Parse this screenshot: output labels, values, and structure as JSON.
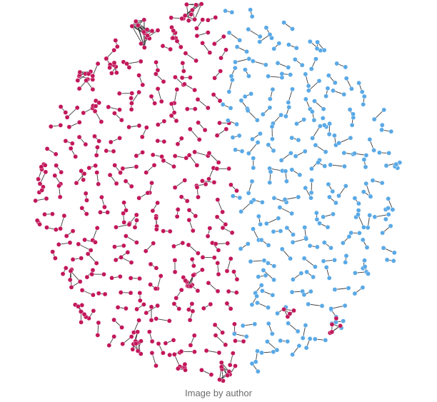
{
  "figure": {
    "type": "network-graph",
    "node_groups": [
      {
        "label": "",
        "color": "#c2185b"
      },
      {
        "label": "",
        "color": "#5aa9e6"
      }
    ],
    "edge_color": "#3a3a3a",
    "layout_shape": "circular cloud of small disconnected components",
    "approx_component_count": 320
  },
  "caption": "Image by author"
}
